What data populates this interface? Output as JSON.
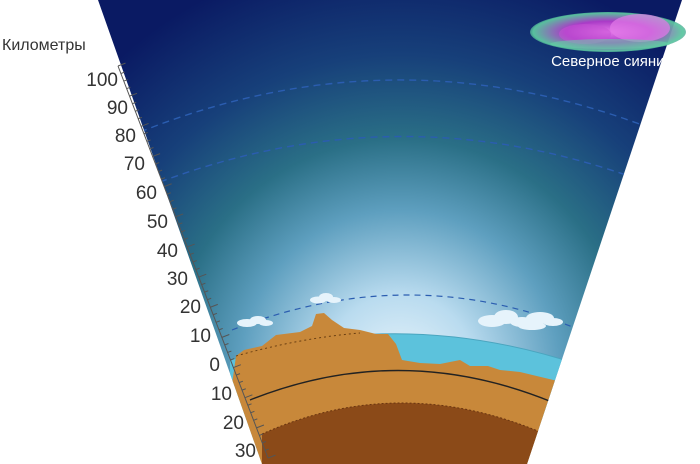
{
  "axis": {
    "title": "Километры",
    "ticks_up": [
      "100",
      "90",
      "80",
      "70",
      "60",
      "50",
      "40",
      "30",
      "20",
      "10",
      "0"
    ],
    "ticks_down": [
      "10",
      "20",
      "30"
    ]
  },
  "aurora": {
    "label": "Северное сияние",
    "icon": "aurora-icon"
  },
  "layers": [
    "sky-gradient",
    "ocean",
    "continent-crust",
    "mantle-boundary",
    "inner-mantle"
  ],
  "colors": {
    "sky_top": "#0a1a63",
    "sky_mid": "#2a6f8a",
    "sky_bottom": "#cfe6f5",
    "ocean": "#5cc2dc",
    "crust": "#c8883a",
    "mantle": "#8b4a18",
    "boundary_lines": "#1f4fa0"
  }
}
